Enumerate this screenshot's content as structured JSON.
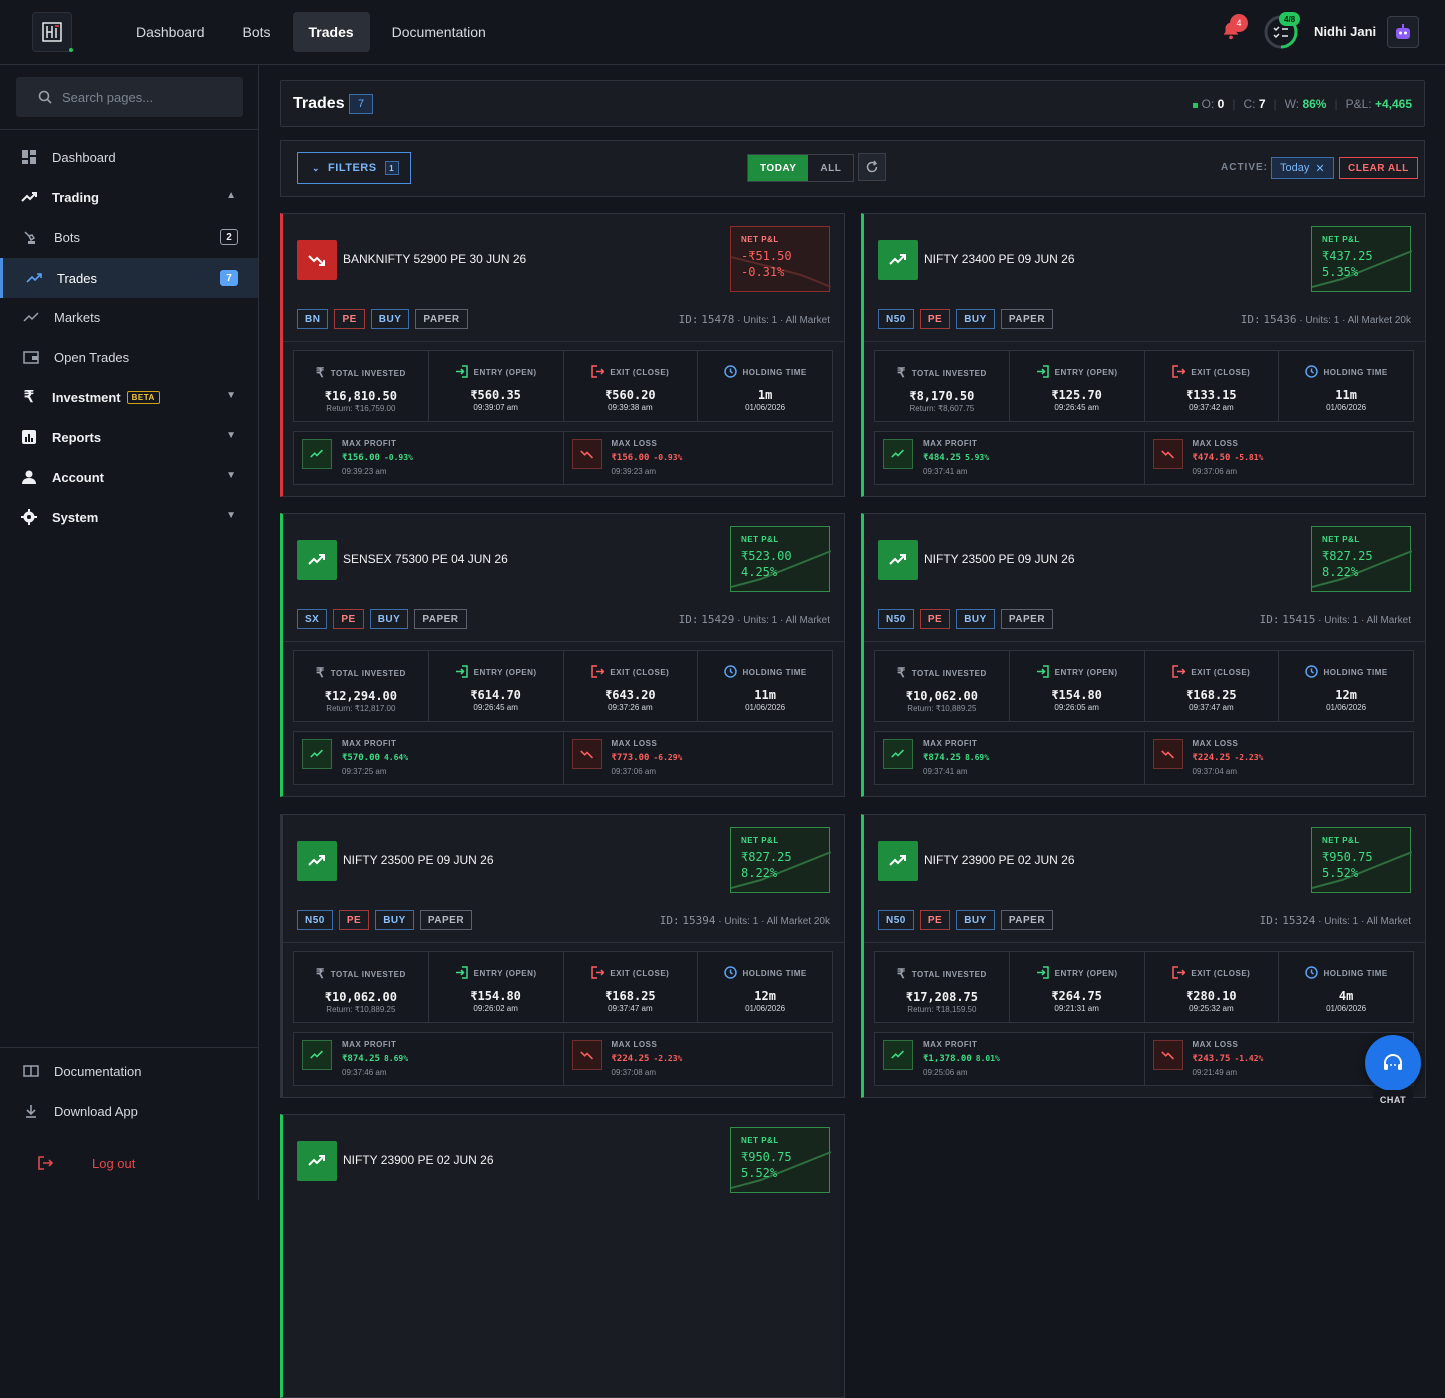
{
  "topnav": {
    "items": [
      "Dashboard",
      "Bots",
      "Trades",
      "Documentation"
    ],
    "active": "Trades",
    "notification_count": "4",
    "progress_badge": "4/8",
    "username": "Nidhi Jani"
  },
  "sidebar": {
    "search_placeholder": "Search pages...",
    "items": [
      {
        "label": "Dashboard",
        "icon": "grid-icon"
      },
      {
        "label": "Trading",
        "icon": "trending-up-icon",
        "chevron": "up"
      },
      {
        "label": "Bots",
        "icon": "robot-icon",
        "count": "2"
      },
      {
        "label": "Trades",
        "icon": "trending-up-icon",
        "count": "7",
        "active": true
      },
      {
        "label": "Markets",
        "icon": "trending-up-icon"
      },
      {
        "label": "Open Trades",
        "icon": "wallet-icon"
      },
      {
        "label": "Investment",
        "icon": "rupee-icon",
        "badge": "BETA",
        "chevron": "down"
      },
      {
        "label": "Reports",
        "icon": "bar-chart-icon",
        "chevron": "down"
      },
      {
        "label": "Account",
        "icon": "person-icon",
        "chevron": "down"
      },
      {
        "label": "System",
        "icon": "gear-icon",
        "chevron": "down"
      }
    ],
    "footer": {
      "documentation": "Documentation",
      "download": "Download App",
      "logout": "Log out"
    }
  },
  "header": {
    "title": "Trades",
    "count": "7",
    "o_label": "O:",
    "o_value": "0",
    "c_label": "C:",
    "c_value": "7",
    "w_label": "W:",
    "w_value": "86%",
    "pl_label": "P&L:",
    "pl_value": "+4,465"
  },
  "filters": {
    "button_label": "FILTERS",
    "button_count": "1",
    "today": "TODAY",
    "all": "ALL",
    "active_label": "ACTIVE:",
    "active_chip": "Today",
    "clear_all": "CLEAR ALL"
  },
  "labels": {
    "net_pl": "NET P&L",
    "total_invested": "TOTAL INVESTED",
    "entry": "ENTRY (OPEN)",
    "exit": "EXIT (CLOSE)",
    "holding": "HOLDING TIME",
    "max_profit": "MAX PROFIT",
    "max_loss": "MAX LOSS",
    "id_prefix": "ID:",
    "units": "Units: 1"
  },
  "trades": [
    {
      "name": "BANKNIFTY 52900 PE 30 JUN 26",
      "direction": "down",
      "net_pl": "-₹51.50",
      "net_pct": "-0.31%",
      "tags": [
        "BN",
        "PE",
        "BUY",
        "PAPER"
      ],
      "id": "15478",
      "market": "All Market",
      "invested": "₹16,810.50",
      "return": "Return: ₹16,759.00",
      "entry": "₹560.35",
      "entry_time": "09:39:07 am",
      "exit": "₹560.20",
      "exit_time": "09:39:38 am",
      "holding": "1m",
      "date": "01/06/2026",
      "max_profit": "₹156.00",
      "max_profit_pct": "-0.93%",
      "max_profit_time": "09:39:23 am",
      "max_loss": "₹156.00",
      "max_loss_pct": "-0.93%",
      "max_loss_time": "09:39:23 am"
    },
    {
      "name": "NIFTY 23400 PE 09 JUN 26",
      "direction": "up",
      "net_pl": "₹437.25",
      "net_pct": "5.35%",
      "tags": [
        "N50",
        "PE",
        "BUY",
        "PAPER"
      ],
      "id": "15436",
      "market": "All Market 20k",
      "invested": "₹8,170.50",
      "return": "Return: ₹8,607.75",
      "entry": "₹125.70",
      "entry_time": "09:26:45 am",
      "exit": "₹133.15",
      "exit_time": "09:37:42 am",
      "holding": "11m",
      "date": "01/06/2026",
      "max_profit": "₹484.25",
      "max_profit_pct": "5.93%",
      "max_profit_time": "09:37:41 am",
      "max_loss": "₹474.50",
      "max_loss_pct": "-5.81%",
      "max_loss_time": "09:37:06 am"
    },
    {
      "name": "SENSEX 75300 PE 04 JUN 26",
      "direction": "up",
      "net_pl": "₹523.00",
      "net_pct": "4.25%",
      "tags": [
        "SX",
        "PE",
        "BUY",
        "PAPER"
      ],
      "id": "15429",
      "market": "All Market",
      "invested": "₹12,294.00",
      "return": "Return: ₹12,817.00",
      "entry": "₹614.70",
      "entry_time": "09:26:45 am",
      "exit": "₹643.20",
      "exit_time": "09:37:26 am",
      "holding": "11m",
      "date": "01/06/2026",
      "max_profit": "₹570.00",
      "max_profit_pct": "4.64%",
      "max_profit_time": "09:37:25 am",
      "max_loss": "₹773.00",
      "max_loss_pct": "-6.29%",
      "max_loss_time": "09:37:06 am"
    },
    {
      "name": "NIFTY 23500 PE 09 JUN 26",
      "direction": "up",
      "net_pl": "₹827.25",
      "net_pct": "8.22%",
      "tags": [
        "N50",
        "PE",
        "BUY",
        "PAPER"
      ],
      "id": "15415",
      "market": "All Market",
      "invested": "₹10,062.00",
      "return": "Return: ₹10,889.25",
      "entry": "₹154.80",
      "entry_time": "09:26:05 am",
      "exit": "₹168.25",
      "exit_time": "09:37:47 am",
      "holding": "12m",
      "date": "01/06/2026",
      "max_profit": "₹874.25",
      "max_profit_pct": "8.69%",
      "max_profit_time": "09:37:41 am",
      "max_loss": "₹224.25",
      "max_loss_pct": "-2.23%",
      "max_loss_time": "09:37:04 am"
    },
    {
      "name": "NIFTY 23500 PE 09 JUN 26",
      "direction": "up",
      "net_pl": "₹827.25",
      "net_pct": "8.22%",
      "tags": [
        "N50",
        "PE",
        "BUY",
        "PAPER"
      ],
      "id": "15394",
      "market": "All Market 20k",
      "invested": "₹10,062.00",
      "return": "Return: ₹10,889.25",
      "entry": "₹154.80",
      "entry_time": "09:26:02 am",
      "exit": "₹168.25",
      "exit_time": "09:37:47 am",
      "holding": "12m",
      "date": "01/06/2026",
      "max_profit": "₹874.25",
      "max_profit_pct": "8.69%",
      "max_profit_time": "09:37:46 am",
      "max_loss": "₹224.25",
      "max_loss_pct": "-2.23%",
      "max_loss_time": "09:37:08 am"
    },
    {
      "name": "NIFTY 23900 PE 02 JUN 26",
      "direction": "up",
      "net_pl": "₹950.75",
      "net_pct": "5.52%",
      "tags": [
        "N50",
        "PE",
        "BUY",
        "PAPER"
      ],
      "id": "15324",
      "market": "All Market",
      "invested": "₹17,208.75",
      "return": "Return: ₹18,159.50",
      "entry": "₹264.75",
      "entry_time": "09:21:31 am",
      "exit": "₹280.10",
      "exit_time": "09:25:32 am",
      "holding": "4m",
      "date": "01/06/2026",
      "max_profit": "₹1,378.00",
      "max_profit_pct": "8.01%",
      "max_profit_time": "09:25:06 am",
      "max_loss": "₹243.75",
      "max_loss_pct": "-1.42%",
      "max_loss_time": "09:21:49 am"
    },
    {
      "name": "NIFTY 23900 PE 02 JUN 26",
      "direction": "up",
      "net_pl": "₹950.75",
      "net_pct": "5.52%"
    }
  ],
  "chat": {
    "label": "CHAT"
  },
  "colors": {
    "profit": "#3ddc84",
    "loss": "#ff5e5e",
    "accent": "#4a90e2",
    "background": "#13161c"
  }
}
